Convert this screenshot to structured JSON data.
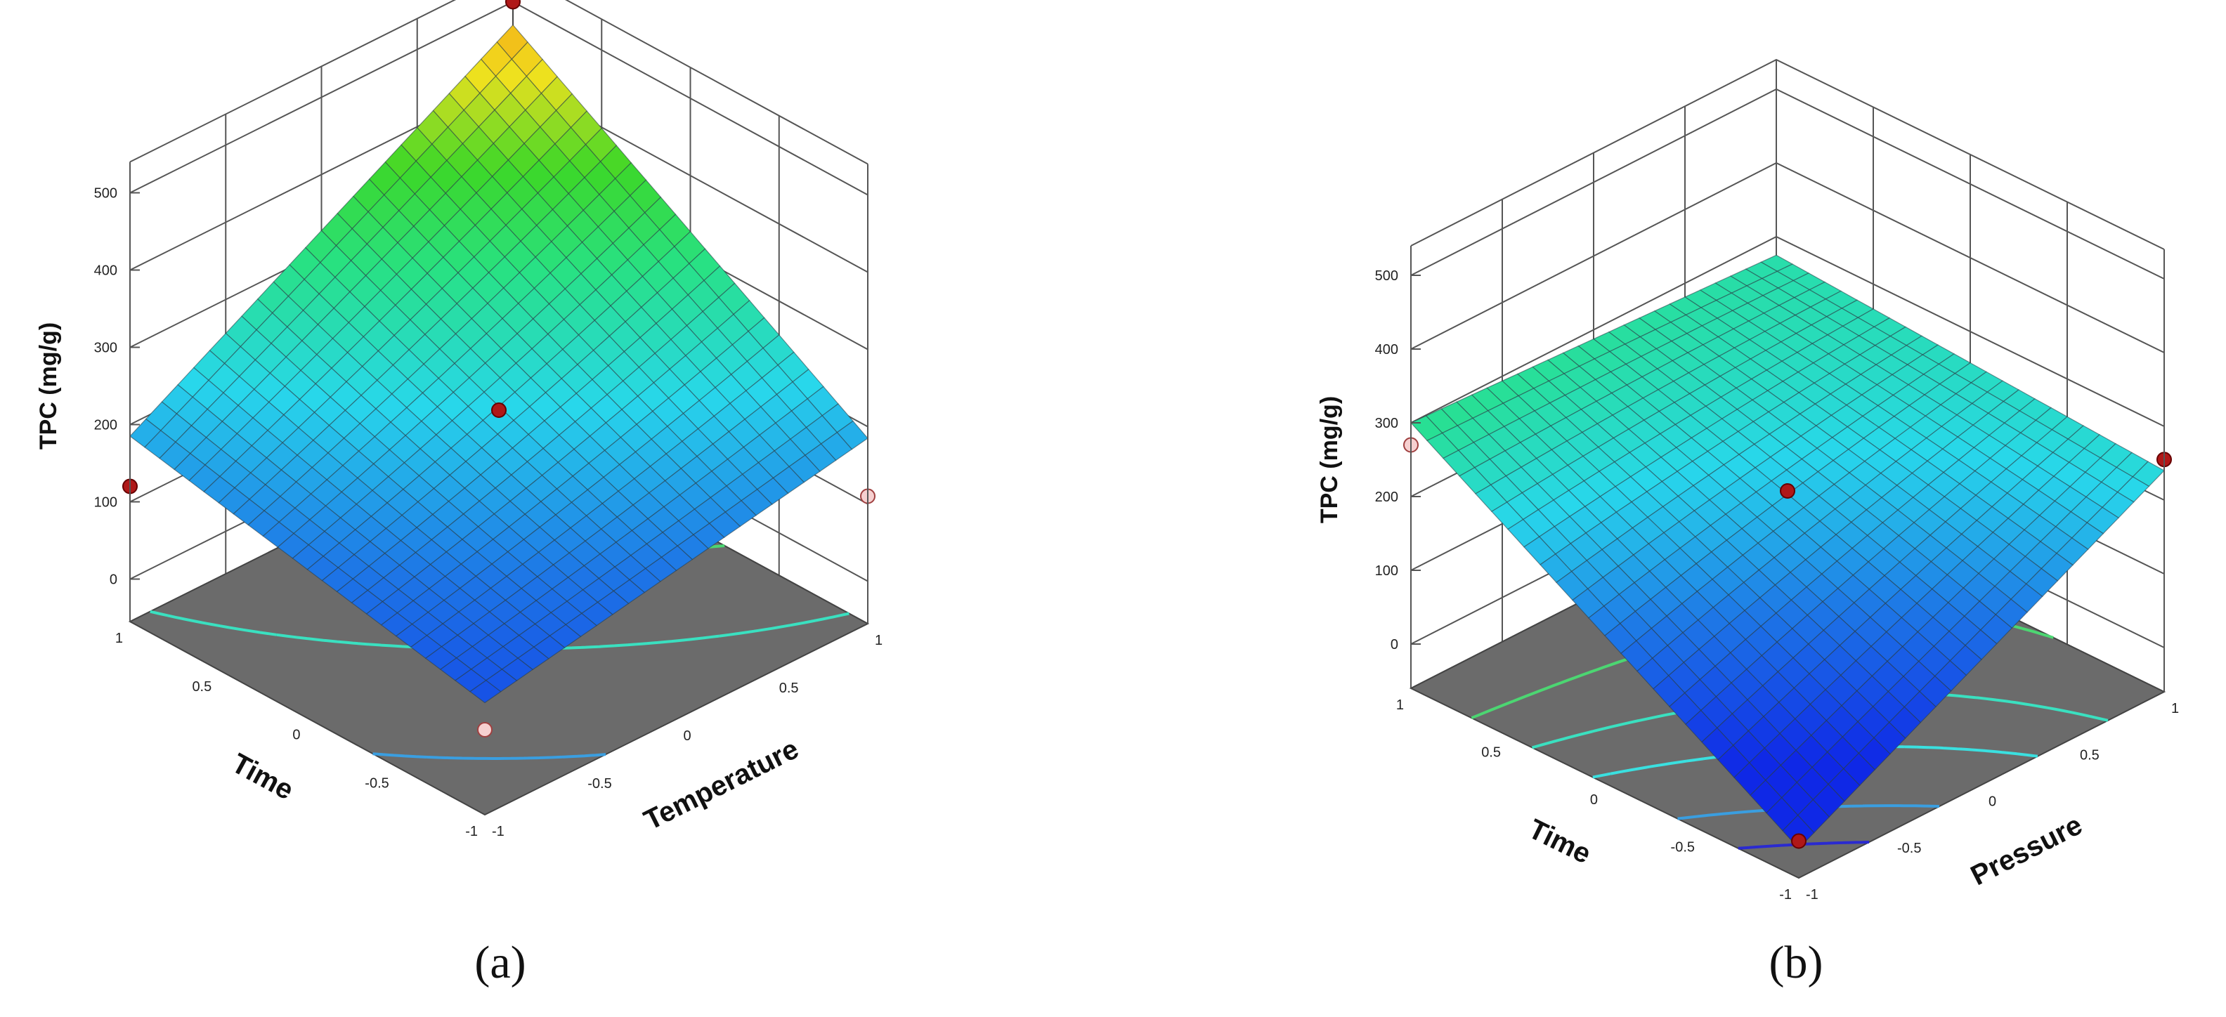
{
  "chart_data": [
    {
      "type": "surface3d",
      "caption": "(a)",
      "zlabel": "TPC (mg/g)",
      "zticks": [
        "0",
        "100",
        "200",
        "300",
        "400",
        "500"
      ],
      "zlim": [
        0,
        500
      ],
      "xlabel": "Temperature",
      "ylabel": "Time",
      "xticks": [
        "-1",
        "-0.5",
        "0",
        "0.5",
        "1"
      ],
      "yticks": [
        "-1",
        "-0.5",
        "0",
        "0.5",
        "1"
      ],
      "xlim": [
        -1,
        1
      ],
      "ylim": [
        -1,
        1
      ],
      "corners": {
        "front": 90,
        "left": 185,
        "right": 185,
        "back": 470
      },
      "center": 220,
      "design_points": [
        {
          "x": 1,
          "y": 1,
          "z": 500,
          "above": true
        },
        {
          "x": 0,
          "y": 0,
          "z": 220,
          "above": true
        },
        {
          "x": -1,
          "y": 1,
          "z": 120,
          "above": true
        },
        {
          "x": 1,
          "y": -1,
          "z": 110,
          "above": false
        },
        {
          "x": -1,
          "y": -1,
          "z": 55,
          "above": false
        }
      ],
      "contours": [
        {
          "color": "#62e28c",
          "level": 400
        },
        {
          "color": "#4cd672",
          "level": 300
        },
        {
          "color": "#3ae0c0",
          "level": 200
        },
        {
          "color": "#3a9ee0",
          "level": 120
        },
        {
          "color": "#3a9ee0",
          "level": 60
        }
      ]
    },
    {
      "type": "surface3d",
      "caption": "(b)",
      "zlabel": "TPC (mg/g)",
      "zticks": [
        "0",
        "100",
        "200",
        "300",
        "400",
        "500"
      ],
      "zlim": [
        0,
        500
      ],
      "xlabel": "Pressure",
      "ylabel": "Time",
      "xticks": [
        "-1",
        "-0.5",
        "0",
        "0.5",
        "1"
      ],
      "yticks": [
        "-1",
        "-0.5",
        "0",
        "0.5",
        "1"
      ],
      "xlim": [
        -1,
        1
      ],
      "ylim": [
        -1,
        1
      ],
      "corners": {
        "front": -20,
        "left": 300,
        "right": 240,
        "back": 275
      },
      "center": 210,
      "design_points": [
        {
          "x": 1,
          "y": -1,
          "z": 255,
          "above": true
        },
        {
          "x": 0,
          "y": 0,
          "z": 210,
          "above": true
        },
        {
          "x": -1,
          "y": -1,
          "z": -10,
          "above": true
        },
        {
          "x": -1,
          "y": 1,
          "z": 270,
          "above": false
        }
      ],
      "contours": [
        {
          "color": "#4cd672",
          "level": 250
        },
        {
          "color": "#3ae0c0",
          "level": 200
        },
        {
          "color": "#3ae0e0",
          "level": 150
        },
        {
          "color": "#3a9ee0",
          "level": 80
        },
        {
          "color": "#2a2ad0",
          "level": 30
        }
      ]
    }
  ]
}
